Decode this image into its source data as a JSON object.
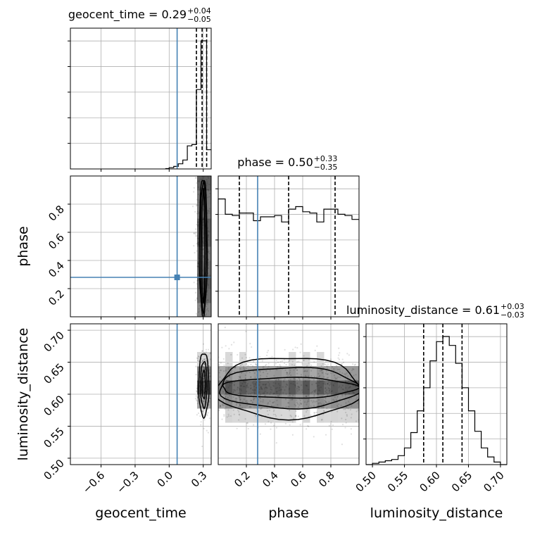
{
  "chart_data": {
    "type": "corner",
    "parameters": [
      "geocent_time",
      "phase",
      "luminosity_distance"
    ],
    "truths": {
      "geocent_time": 0.07,
      "phase": 0.28
    },
    "titles": [
      {
        "param": "geocent_time",
        "main": "geocent_time = 0.29",
        "sup": "+0.04",
        "sub": "−0.05"
      },
      {
        "param": "phase",
        "main": "phase = 0.50",
        "sup": "+0.33",
        "sub": "−0.35"
      },
      {
        "param": "luminosity_distance",
        "main": "luminosity_distance = 0.61",
        "sup": "+0.03",
        "sub": "−0.03"
      }
    ],
    "axis_labels": {
      "geocent_time": "geocent_time",
      "phase": "phase",
      "luminosity_distance": "luminosity_distance"
    },
    "ranges": {
      "geocent_time": [
        -0.87,
        0.37
      ],
      "phase": [
        0.0,
        1.0
      ],
      "luminosity_distance": [
        0.49,
        0.71
      ]
    },
    "ticks": {
      "geocent_time": [
        {
          "v": -0.6,
          "label": "−0.6"
        },
        {
          "v": -0.3,
          "label": "−0.3"
        },
        {
          "v": 0.0,
          "label": "0.0"
        },
        {
          "v": 0.3,
          "label": "0.3"
        }
      ],
      "phase": [
        {
          "v": 0.2,
          "label": "0.2"
        },
        {
          "v": 0.4,
          "label": "0.4"
        },
        {
          "v": 0.6,
          "label": "0.6"
        },
        {
          "v": 0.8,
          "label": "0.8"
        }
      ],
      "luminosity_distance": [
        {
          "v": 0.5,
          "label": "0.50"
        },
        {
          "v": 0.55,
          "label": "0.55"
        },
        {
          "v": 0.6,
          "label": "0.60"
        },
        {
          "v": 0.65,
          "label": "0.65"
        },
        {
          "v": 0.7,
          "label": "0.70"
        }
      ]
    },
    "quantiles": {
      "geocent_time": [
        0.24,
        0.29,
        0.33
      ],
      "phase": [
        0.15,
        0.5,
        0.83
      ],
      "luminosity_distance": [
        0.58,
        0.61,
        0.64
      ]
    },
    "histograms": {
      "geocent_time": {
        "edges": [
          -0.03,
          0.0,
          0.04,
          0.08,
          0.12,
          0.16,
          0.2,
          0.24,
          0.28,
          0.33,
          0.37
        ],
        "counts": [
          0.003,
          0.01,
          0.02,
          0.04,
          0.07,
          0.18,
          0.19,
          0.62,
          1.0,
          0.15
        ]
      },
      "phase": {
        "edges": [
          0.0,
          0.05,
          0.1,
          0.15,
          0.2,
          0.25,
          0.3,
          0.35,
          0.4,
          0.45,
          0.5,
          0.55,
          0.6,
          0.65,
          0.7,
          0.75,
          0.8,
          0.85,
          0.9,
          0.95,
          1.0
        ],
        "counts": [
          0.92,
          0.8,
          0.79,
          0.81,
          0.81,
          0.75,
          0.78,
          0.78,
          0.79,
          0.74,
          0.84,
          0.86,
          0.82,
          0.81,
          0.74,
          0.84,
          0.84,
          0.8,
          0.79,
          0.76
        ]
      },
      "luminosity_distance": {
        "edges": [
          0.49,
          0.5,
          0.51,
          0.52,
          0.53,
          0.54,
          0.55,
          0.56,
          0.57,
          0.58,
          0.59,
          0.6,
          0.61,
          0.62,
          0.63,
          0.64,
          0.65,
          0.66,
          0.67,
          0.68,
          0.69,
          0.7,
          0.71
        ],
        "counts": [
          0.0,
          0.01,
          0.02,
          0.03,
          0.04,
          0.07,
          0.13,
          0.25,
          0.42,
          0.6,
          0.81,
          0.96,
          1.0,
          0.93,
          0.79,
          0.6,
          0.42,
          0.26,
          0.13,
          0.06,
          0.02,
          0.0
        ]
      }
    },
    "contours": [
      {
        "x": "geocent_time",
        "y": "phase",
        "center": [
          0.3,
          0.5
        ],
        "levels": [
          [
            0.035,
            0.49
          ],
          [
            0.024,
            0.46
          ],
          [
            0.012,
            0.4
          ]
        ]
      },
      {
        "x": "geocent_time",
        "y": "luminosity_distance",
        "center": [
          0.305,
          0.615
        ],
        "levels": [
          [
            0.045,
            0.05
          ],
          [
            0.028,
            0.036
          ],
          [
            0.014,
            0.022
          ]
        ]
      },
      {
        "x": "phase",
        "y": "luminosity_distance",
        "center": [
          0.5,
          0.61
        ],
        "levels": [
          [
            0.51,
            0.048
          ],
          [
            0.5,
            0.032
          ],
          [
            0.48,
            0.016
          ]
        ]
      }
    ],
    "grid": true
  }
}
